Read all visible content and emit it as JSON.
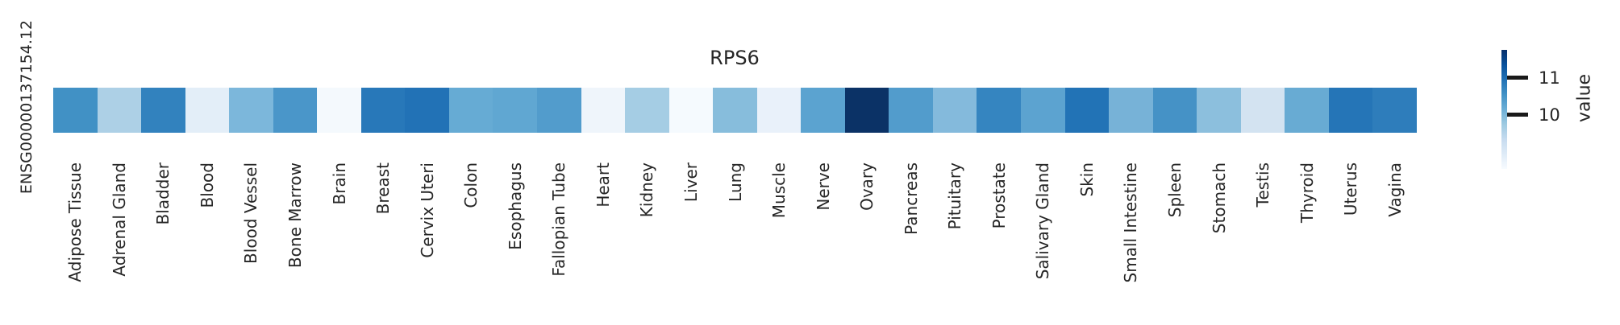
{
  "figure": {
    "title": "RPS6",
    "row_label": "ENSG00000137154.12",
    "background_color": "#ffffff",
    "text_color": "#262626"
  },
  "colorbar": {
    "label": "value",
    "ticks": [
      {
        "label": "11"
      },
      {
        "label": "10"
      }
    ],
    "gradient_top_color": "#08306b",
    "gradient_bottom_color": "#f7fbff",
    "domain_estimate": [
      8.6,
      11.7
    ]
  },
  "chart_data": {
    "type": "heatmap",
    "title": "RPS6",
    "row_labels": [
      "ENSG00000137154.12"
    ],
    "categories": [
      "Adipose Tissue",
      "Adrenal Gland",
      "Bladder",
      "Blood",
      "Blood Vessel",
      "Bone Marrow",
      "Brain",
      "Breast",
      "Cervix Uteri",
      "Colon",
      "Esophagus",
      "Fallopian Tube",
      "Heart",
      "Kidney",
      "Liver",
      "Lung",
      "Muscle",
      "Nerve",
      "Ovary",
      "Pancreas",
      "Pituitary",
      "Prostate",
      "Salivary Gland",
      "Skin",
      "Small Intestine",
      "Spleen",
      "Stomach",
      "Testis",
      "Thyroid",
      "Uterus",
      "Vagina"
    ],
    "series": [
      {
        "name": "ENSG00000137154.12",
        "values": [
          10.6,
          9.6,
          10.7,
          8.9,
          10.0,
          10.5,
          8.7,
          10.8,
          10.9,
          10.2,
          10.3,
          10.4,
          8.7,
          9.7,
          8.6,
          9.9,
          8.8,
          10.3,
          11.7,
          10.4,
          10.0,
          10.7,
          10.3,
          10.9,
          10.1,
          10.5,
          9.9,
          9.1,
          10.3,
          10.9,
          10.8
        ]
      }
    ],
    "cell_colors": [
      "#4191C5",
      "#ADD0E6",
      "#3282BE",
      "#E3EEF8",
      "#7CB7DB",
      "#4A96C9",
      "#F4F9FD",
      "#2878B9",
      "#2272B6",
      "#66ABD4",
      "#60A7D2",
      "#529CCC",
      "#EFF5FB",
      "#A5CDE4",
      "#F5FAFE",
      "#87BDDC",
      "#E9F1FA",
      "#5BA3D0",
      "#0B3266",
      "#529CCC",
      "#84BADC",
      "#3585C0",
      "#5CA3D0",
      "#2273B6",
      "#77B2D7",
      "#4592C6",
      "#8CBFDD",
      "#D3E3F1",
      "#68ABD3",
      "#2575B7",
      "#2E7DBB"
    ],
    "colormap": "Blues",
    "colorbar_label": "value",
    "colorbar_ticks": [
      10,
      11
    ],
    "value_range_estimate": [
      8.6,
      11.7
    ],
    "legend_position": "right",
    "grid": false,
    "x_tick_rotation_deg": 90,
    "values_note": "values estimated from cell color vs colorbar scale"
  }
}
